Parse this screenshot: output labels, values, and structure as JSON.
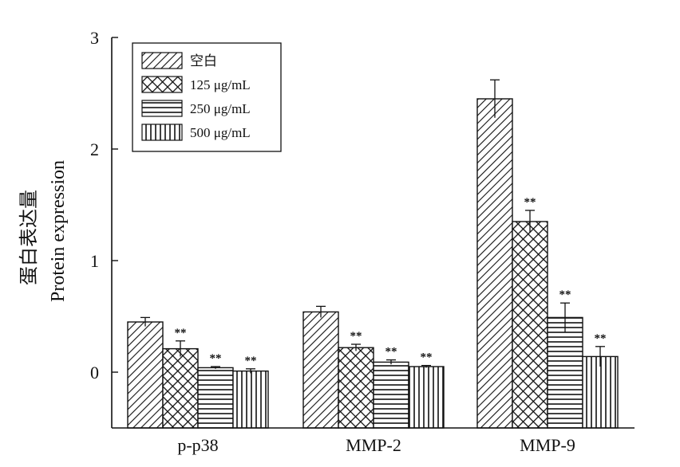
{
  "chart_data": {
    "type": "bar",
    "ylabel_cn": "蛋白表达量",
    "ylabel_en": "Protein expression",
    "xlabel": "",
    "ylim": [
      -0.5,
      3
    ],
    "yticks": [
      "0",
      "1",
      "2",
      "3"
    ],
    "categories": [
      "p-p38",
      "MMP-2",
      "MMP-9"
    ],
    "legend_position": "top-left",
    "series": [
      {
        "name": "空白",
        "pattern": "diagonal",
        "values": [
          0.45,
          0.54,
          2.45
        ],
        "errors": [
          0.04,
          0.05,
          0.17
        ],
        "sig": [
          "",
          "",
          ""
        ]
      },
      {
        "name": "125 μg/mL",
        "pattern": "crosshatch",
        "values": [
          0.21,
          0.22,
          1.35
        ],
        "errors": [
          0.07,
          0.03,
          0.1
        ],
        "sig": [
          "**",
          "**",
          "**"
        ]
      },
      {
        "name": "250 μg/mL",
        "pattern": "horizontal",
        "values": [
          0.04,
          0.09,
          0.49
        ],
        "errors": [
          0.01,
          0.02,
          0.13
        ],
        "sig": [
          "**",
          "**",
          "**"
        ]
      },
      {
        "name": "500 μg/mL",
        "pattern": "vertical",
        "values": [
          0.01,
          0.05,
          0.14
        ],
        "errors": [
          0.02,
          0.01,
          0.09
        ],
        "sig": [
          "**",
          "**",
          "**"
        ]
      }
    ],
    "grid": false
  }
}
